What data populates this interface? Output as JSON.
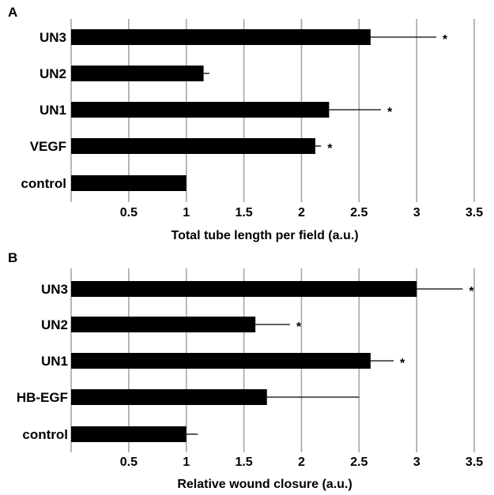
{
  "chart_data": [
    {
      "type": "bar",
      "orientation": "horizontal",
      "panel": "A",
      "categories": [
        "control",
        "VEGF",
        "UN1",
        "UN2",
        "UN3"
      ],
      "values": [
        1.0,
        2.12,
        2.24,
        1.15,
        2.6
      ],
      "errors": [
        0.0,
        0.05,
        0.45,
        0.05,
        0.57
      ],
      "significance": [
        "",
        "*",
        "*",
        "",
        "*"
      ],
      "xlabel": "Total tube length per field (a.u.)",
      "ylabel": "",
      "xlim": [
        0,
        3.5
      ],
      "xticks": [
        "0.5",
        "1",
        "1.5",
        "2",
        "2.5",
        "3",
        "3.5"
      ],
      "grid": "vertical"
    },
    {
      "type": "bar",
      "orientation": "horizontal",
      "panel": "B",
      "categories": [
        "control",
        "HB-EGF",
        "UN1",
        "UN2",
        "UN3"
      ],
      "values": [
        1.0,
        1.7,
        2.6,
        1.6,
        3.0
      ],
      "errors": [
        0.1,
        0.8,
        0.2,
        0.3,
        0.4
      ],
      "significance": [
        "",
        "",
        "*",
        "*",
        "*"
      ],
      "xlabel": "Relative wound closure (a.u.)",
      "ylabel": "",
      "xlim": [
        0,
        3.5
      ],
      "xticks": [
        "0.5",
        "1",
        "1.5",
        "2",
        "2.5",
        "3",
        "3.5"
      ],
      "grid": "vertical"
    }
  ]
}
